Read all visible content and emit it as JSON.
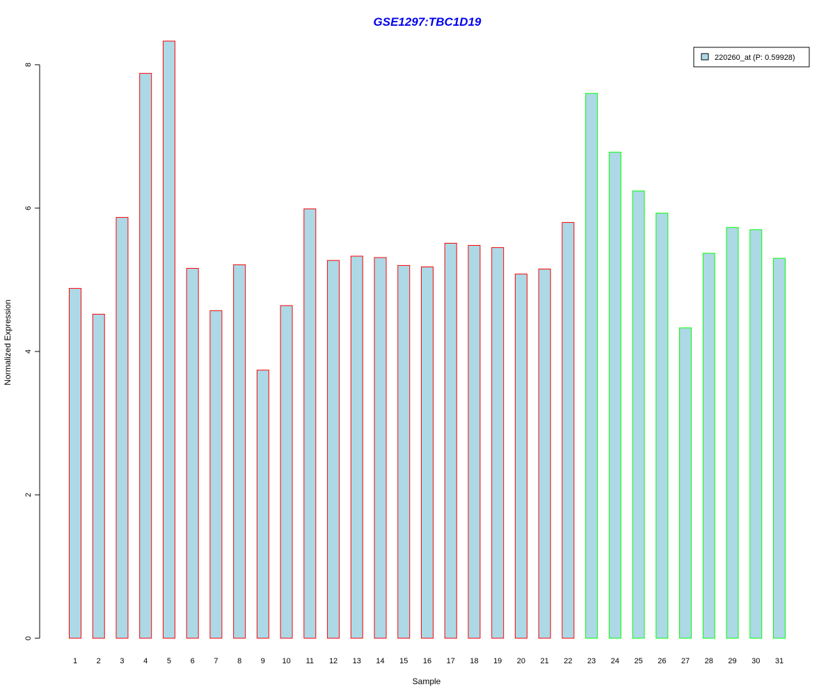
{
  "chart_data": {
    "type": "bar",
    "title": "GSE1297:TBC1D19",
    "xlabel": "Sample",
    "ylabel": "Normalized Expression",
    "ylim": [
      0,
      8.4
    ],
    "yticks": [
      0,
      2,
      4,
      6,
      8
    ],
    "grid": false,
    "legend": {
      "placement": "top-right",
      "entries": [
        "220260_at (P: 0.59928)"
      ]
    },
    "fill_color": "#add8e6",
    "group_colors": {
      "group1": "#ff0000",
      "group2": "#00ff00"
    },
    "categories": [
      "1",
      "2",
      "3",
      "4",
      "5",
      "6",
      "7",
      "8",
      "9",
      "10",
      "11",
      "12",
      "13",
      "14",
      "15",
      "16",
      "17",
      "18",
      "19",
      "20",
      "21",
      "22",
      "23",
      "24",
      "25",
      "26",
      "27",
      "28",
      "29",
      "30",
      "31"
    ],
    "groups": [
      "group1",
      "group1",
      "group1",
      "group1",
      "group1",
      "group1",
      "group1",
      "group1",
      "group1",
      "group1",
      "group1",
      "group1",
      "group1",
      "group1",
      "group1",
      "group1",
      "group1",
      "group1",
      "group1",
      "group1",
      "group1",
      "group1",
      "group2",
      "group2",
      "group2",
      "group2",
      "group2",
      "group2",
      "group2",
      "group2",
      "group2"
    ],
    "series": [
      {
        "name": "220260_at (P: 0.59928)",
        "values": [
          4.88,
          4.52,
          5.87,
          7.88,
          8.33,
          5.16,
          4.57,
          5.21,
          3.74,
          4.64,
          5.99,
          5.27,
          5.33,
          5.31,
          5.2,
          5.18,
          5.51,
          5.48,
          5.45,
          5.08,
          5.15,
          5.8,
          7.6,
          6.78,
          6.24,
          5.93,
          4.33,
          5.37,
          5.73,
          5.7,
          5.3
        ]
      }
    ]
  }
}
